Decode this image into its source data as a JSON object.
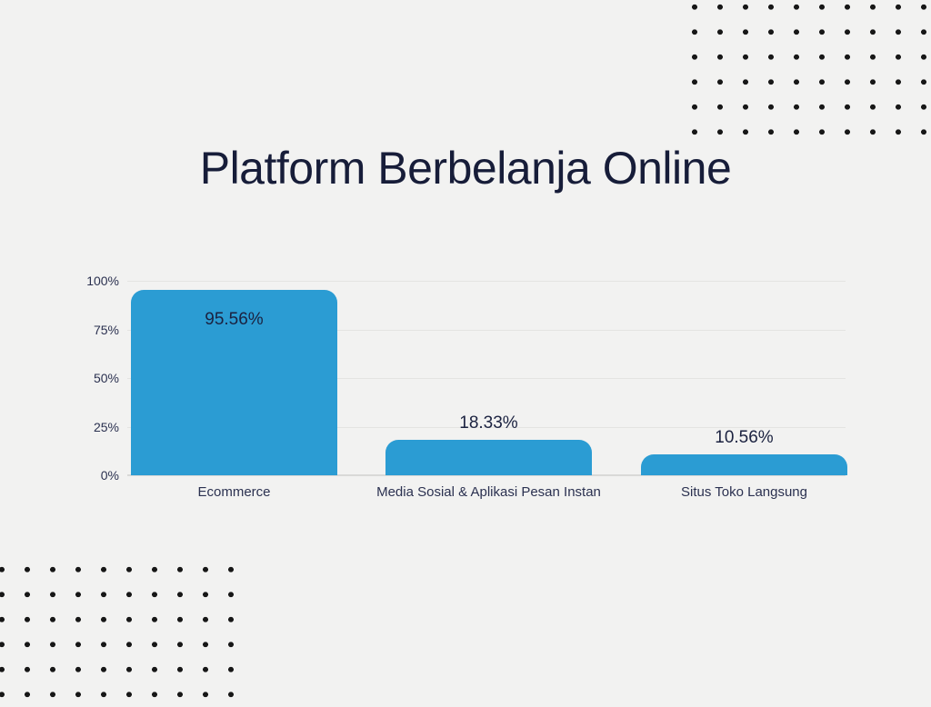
{
  "title": "Platform Berbelanja Online",
  "colors": {
    "background": "#f2f2f1",
    "title": "#171d39",
    "bar": "#2b9cd3",
    "grid": "#e4e4e2",
    "baseline": "#d9d9d7",
    "tick_text": "#2b3150",
    "value_label_text": "#1b2240",
    "decorative_dots": "#171717"
  },
  "chart_data": {
    "type": "bar",
    "title": "Platform Berbelanja Online",
    "categories": [
      "Ecommerce",
      "Media Sosial & Aplikasi Pesan Instan",
      "Situs Toko Langsung"
    ],
    "values": [
      95.56,
      18.33,
      10.56
    ],
    "value_labels": [
      "95.56%",
      "18.33%",
      "10.56%"
    ],
    "yticks": [
      100,
      75,
      50,
      25,
      0
    ],
    "ytick_labels": [
      "100%",
      "75%",
      "50%",
      "25%",
      "0%"
    ],
    "ylim": [
      0,
      100
    ],
    "xlabel": "",
    "ylabel": "",
    "grid": true,
    "legend": "none",
    "bar_color": "#2b9cd3"
  }
}
